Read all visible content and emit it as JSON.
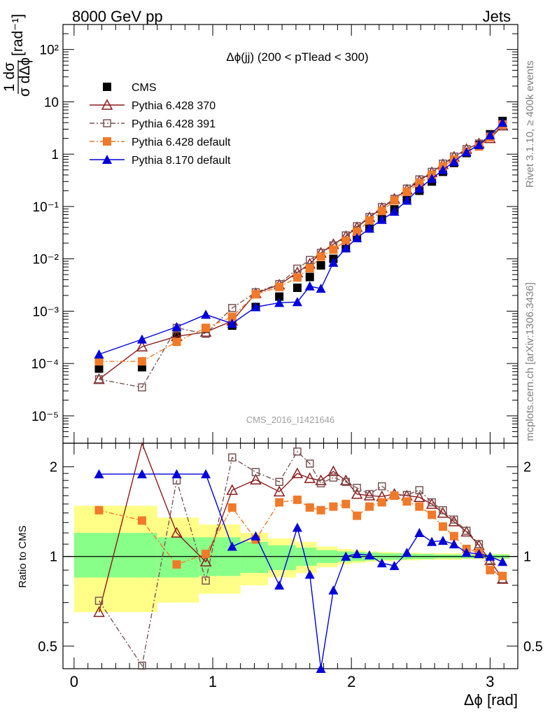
{
  "header": {
    "left": "8000 GeV pp",
    "right": "Jets",
    "side_top": "Rivet 3.1.10, ≥ 400k events",
    "side_bottom": "mcplots.cern.ch [arXiv:1306.3436]"
  },
  "chart_data": [
    {
      "type": "scatter",
      "title": "Δϕ(jj) (200 < pTlead <  300)",
      "watermark": "CMS_2016_I1421646",
      "ylabel_num": "1 dσ",
      "ylabel_den": "σ dΔϕ",
      "ylabel_unit": "[rad⁻¹]",
      "yscale": "log",
      "xlim": [
        -0.08,
        3.2
      ],
      "ylim": [
        3e-06,
        300
      ],
      "y_ticks": [
        {
          "v": 100,
          "label": "10²"
        },
        {
          "v": 10,
          "label": "10"
        },
        {
          "v": 1,
          "label": "1"
        },
        {
          "v": 0.1,
          "label": "10⁻¹"
        },
        {
          "v": 0.01,
          "label": "10⁻²"
        },
        {
          "v": 0.001,
          "label": "10⁻³"
        },
        {
          "v": 0.0001,
          "label": "10⁻⁴"
        },
        {
          "v": 1e-05,
          "label": "10⁻⁵"
        }
      ],
      "legend_position": "top-left",
      "series": [
        {
          "name": "CMS",
          "color": "#000000",
          "marker": "square",
          "line": "none",
          "x": [
            0.18,
            0.49,
            0.74,
            0.95,
            1.14,
            1.31,
            1.48,
            1.61,
            1.7,
            1.78,
            1.87,
            1.96,
            2.04,
            2.13,
            2.22,
            2.31,
            2.4,
            2.49,
            2.58,
            2.66,
            2.74,
            2.83,
            2.92,
            3.0,
            3.09
          ],
          "y": [
            8e-05,
            8.5e-05,
            0.00033,
            0.00046,
            0.00053,
            0.0012,
            0.0019,
            0.0028,
            0.0045,
            0.0075,
            0.01,
            0.016,
            0.025,
            0.039,
            0.058,
            0.088,
            0.135,
            0.2,
            0.3,
            0.46,
            0.68,
            1.05,
            1.5,
            2.4,
            4.3
          ]
        },
        {
          "name": "Pythia 6.428 370",
          "color": "#8b1a1a",
          "marker": "triangle-open",
          "line": "solid",
          "x": [
            0.18,
            0.49,
            0.74,
            0.95,
            1.14,
            1.31,
            1.48,
            1.61,
            1.7,
            1.78,
            1.87,
            1.96,
            2.04,
            2.13,
            2.22,
            2.31,
            2.4,
            2.49,
            2.58,
            2.66,
            2.74,
            2.83,
            2.92,
            3.0,
            3.09
          ],
          "y": [
            5e-05,
            0.00021,
            0.00033,
            0.0004,
            0.00065,
            0.0022,
            0.0032,
            0.0055,
            0.008,
            0.013,
            0.019,
            0.027,
            0.04,
            0.062,
            0.093,
            0.14,
            0.21,
            0.31,
            0.45,
            0.64,
            0.89,
            1.25,
            1.6,
            2.0,
            3.5
          ]
        },
        {
          "name": "Pythia 6.428 391",
          "color": "#7a5555",
          "marker": "square-open",
          "line": "dashdot",
          "x": [
            0.18,
            0.49,
            0.74,
            0.95,
            1.14,
            1.31,
            1.48,
            1.61,
            1.7,
            1.78,
            1.87,
            1.96,
            2.04,
            2.13,
            2.22,
            2.31,
            2.4,
            2.49,
            2.58,
            2.66,
            2.74,
            2.83,
            2.92,
            3.0,
            3.09
          ],
          "y": [
            5e-05,
            3.5e-05,
            0.00048,
            0.00037,
            0.00115,
            0.0023,
            0.0033,
            0.0065,
            0.0095,
            0.013,
            0.018,
            0.028,
            0.042,
            0.063,
            0.098,
            0.14,
            0.22,
            0.33,
            0.46,
            0.66,
            0.9,
            1.25,
            1.6,
            2.2,
            3.6
          ]
        },
        {
          "name": "Pythia 6.428 default",
          "color": "#f07a2a",
          "marker": "square",
          "line": "dashdot",
          "x": [
            0.18,
            0.49,
            0.74,
            0.95,
            1.14,
            1.31,
            1.48,
            1.61,
            1.7,
            1.78,
            1.87,
            1.96,
            2.04,
            2.13,
            2.22,
            2.31,
            2.4,
            2.49,
            2.58,
            2.66,
            2.74,
            2.83,
            2.92,
            3.0,
            3.09
          ],
          "y": [
            0.00011,
            0.00011,
            0.00026,
            0.00048,
            0.00078,
            0.0021,
            0.0029,
            0.0044,
            0.0066,
            0.011,
            0.015,
            0.022,
            0.033,
            0.054,
            0.082,
            0.13,
            0.19,
            0.28,
            0.4,
            0.58,
            0.79,
            1.1,
            1.4,
            2.1,
            3.7
          ]
        },
        {
          "name": "Pythia 8.170 default",
          "color": "#0000dd",
          "marker": "triangle",
          "line": "solid",
          "x": [
            0.18,
            0.49,
            0.74,
            0.95,
            1.14,
            1.31,
            1.48,
            1.61,
            1.7,
            1.78,
            1.87,
            1.96,
            2.04,
            2.13,
            2.22,
            2.31,
            2.4,
            2.49,
            2.58,
            2.66,
            2.74,
            2.83,
            2.92,
            3.0,
            3.09
          ],
          "y": [
            0.00015,
            0.00029,
            0.0005,
            0.00086,
            0.00058,
            0.0012,
            0.00145,
            0.0015,
            0.003,
            0.0027,
            0.0085,
            0.016,
            0.025,
            0.038,
            0.056,
            0.08,
            0.13,
            0.22,
            0.34,
            0.5,
            0.72,
            1.1,
            1.5,
            2.3,
            4.0
          ]
        }
      ]
    },
    {
      "type": "scatter",
      "ylabel": "Ratio to CMS",
      "xlabel": "Δϕ [rad]",
      "yscale": "log",
      "xlim": [
        -0.08,
        3.2
      ],
      "ylim": [
        0.42,
        2.4
      ],
      "x_ticks": [
        0,
        1,
        2,
        3
      ],
      "y_ticks": [
        0.5,
        1,
        2
      ],
      "bands": {
        "x_edges": [
          0.0,
          0.6,
          0.9,
          1.2,
          1.4,
          1.6,
          1.75,
          1.9,
          2.0,
          2.1,
          2.2,
          2.3,
          2.4,
          2.5,
          2.6,
          2.7,
          2.8,
          2.9,
          3.0,
          3.14
        ],
        "inner": [
          [
            0.85,
            1.2
          ],
          [
            0.85,
            1.16
          ],
          [
            0.86,
            1.16
          ],
          [
            0.88,
            1.12
          ],
          [
            0.9,
            1.09
          ],
          [
            0.93,
            1.07
          ],
          [
            0.95,
            1.05
          ],
          [
            0.96,
            1.04
          ],
          [
            0.965,
            1.035
          ],
          [
            0.97,
            1.03
          ],
          [
            0.975,
            1.025
          ],
          [
            0.975,
            1.025
          ],
          [
            0.98,
            1.02
          ],
          [
            0.98,
            1.02
          ],
          [
            0.985,
            1.015
          ],
          [
            0.985,
            1.015
          ],
          [
            0.985,
            1.015
          ],
          [
            0.985,
            1.015
          ],
          [
            0.985,
            1.015
          ]
        ],
        "outer": [
          [
            0.65,
            1.48
          ],
          [
            0.7,
            1.35
          ],
          [
            0.75,
            1.28
          ],
          [
            0.8,
            1.2
          ],
          [
            0.85,
            1.15
          ],
          [
            0.88,
            1.12
          ],
          [
            0.92,
            1.08
          ],
          [
            0.94,
            1.06
          ],
          [
            0.95,
            1.05
          ],
          [
            0.96,
            1.04
          ],
          [
            0.965,
            1.035
          ],
          [
            0.97,
            1.03
          ],
          [
            0.97,
            1.03
          ],
          [
            0.975,
            1.025
          ],
          [
            0.975,
            1.025
          ],
          [
            0.975,
            1.025
          ],
          [
            0.98,
            1.02
          ],
          [
            0.98,
            1.02
          ],
          [
            0.98,
            1.02
          ]
        ]
      },
      "series": [
        {
          "name": "Pythia 6.428 370",
          "x": [
            0.18,
            0.49,
            0.74,
            0.95,
            1.14,
            1.31,
            1.48,
            1.61,
            1.7,
            1.78,
            1.87,
            1.96,
            2.04,
            2.13,
            2.22,
            2.31,
            2.4,
            2.49,
            2.58,
            2.66,
            2.74,
            2.83,
            2.92,
            3.0,
            3.09
          ],
          "y": [
            0.65,
            2.5,
            1.2,
            0.96,
            1.67,
            1.81,
            1.65,
            1.9,
            1.83,
            1.8,
            1.93,
            1.8,
            1.62,
            1.6,
            1.59,
            1.62,
            1.6,
            1.58,
            1.5,
            1.4,
            1.31,
            1.21,
            1.09,
            0.97,
            0.84
          ]
        },
        {
          "name": "Pythia 6.428 391",
          "x": [
            0.18,
            0.49,
            0.74,
            0.95,
            1.14,
            1.31,
            1.48,
            1.61,
            1.7,
            1.78,
            1.87,
            1.96,
            2.04,
            2.13,
            2.22,
            2.31,
            2.4,
            2.49,
            2.58,
            2.66,
            2.74,
            2.83,
            2.92,
            3.0,
            3.09
          ],
          "y": [
            0.71,
            0.43,
            1.8,
            0.83,
            2.15,
            1.92,
            1.78,
            2.25,
            2.05,
            1.76,
            1.84,
            1.78,
            1.7,
            1.62,
            1.72,
            1.6,
            1.61,
            1.67,
            1.52,
            1.43,
            1.33,
            1.22,
            1.1,
            0.92,
            0.84
          ]
        },
        {
          "name": "Pythia 6.428 default",
          "x": [
            0.18,
            0.49,
            0.74,
            0.95,
            1.14,
            1.31,
            1.48,
            1.61,
            1.7,
            1.78,
            1.87,
            1.96,
            2.04,
            2.13,
            2.22,
            2.31,
            2.4,
            2.49,
            2.58,
            2.66,
            2.74,
            2.83,
            2.92,
            3.0,
            3.09
          ],
          "y": [
            1.43,
            1.32,
            0.94,
            1.02,
            1.46,
            1.14,
            1.52,
            1.55,
            1.46,
            1.43,
            1.47,
            1.5,
            1.37,
            1.47,
            1.52,
            1.6,
            1.53,
            1.47,
            1.38,
            1.26,
            1.17,
            1.06,
            1.03,
            0.9,
            0.86
          ]
        },
        {
          "name": "Pythia 8.170 default",
          "x": [
            0.18,
            0.49,
            0.74,
            0.95,
            1.14,
            1.31,
            1.48,
            1.61,
            1.7,
            1.78,
            1.87,
            1.96,
            2.04,
            2.13,
            2.22,
            2.31,
            2.4,
            2.49,
            2.58,
            2.66,
            2.74,
            2.83,
            2.92,
            3.0,
            3.09
          ],
          "y": [
            1.89,
            1.89,
            1.89,
            1.89,
            1.08,
            1.17,
            0.8,
            1.25,
            0.87,
            0.42,
            0.77,
            1.0,
            1.02,
            1.01,
            0.95,
            0.93,
            1.03,
            1.2,
            1.12,
            1.13,
            1.1,
            1.03,
            1.02,
            1.0,
            0.96
          ]
        }
      ]
    }
  ]
}
